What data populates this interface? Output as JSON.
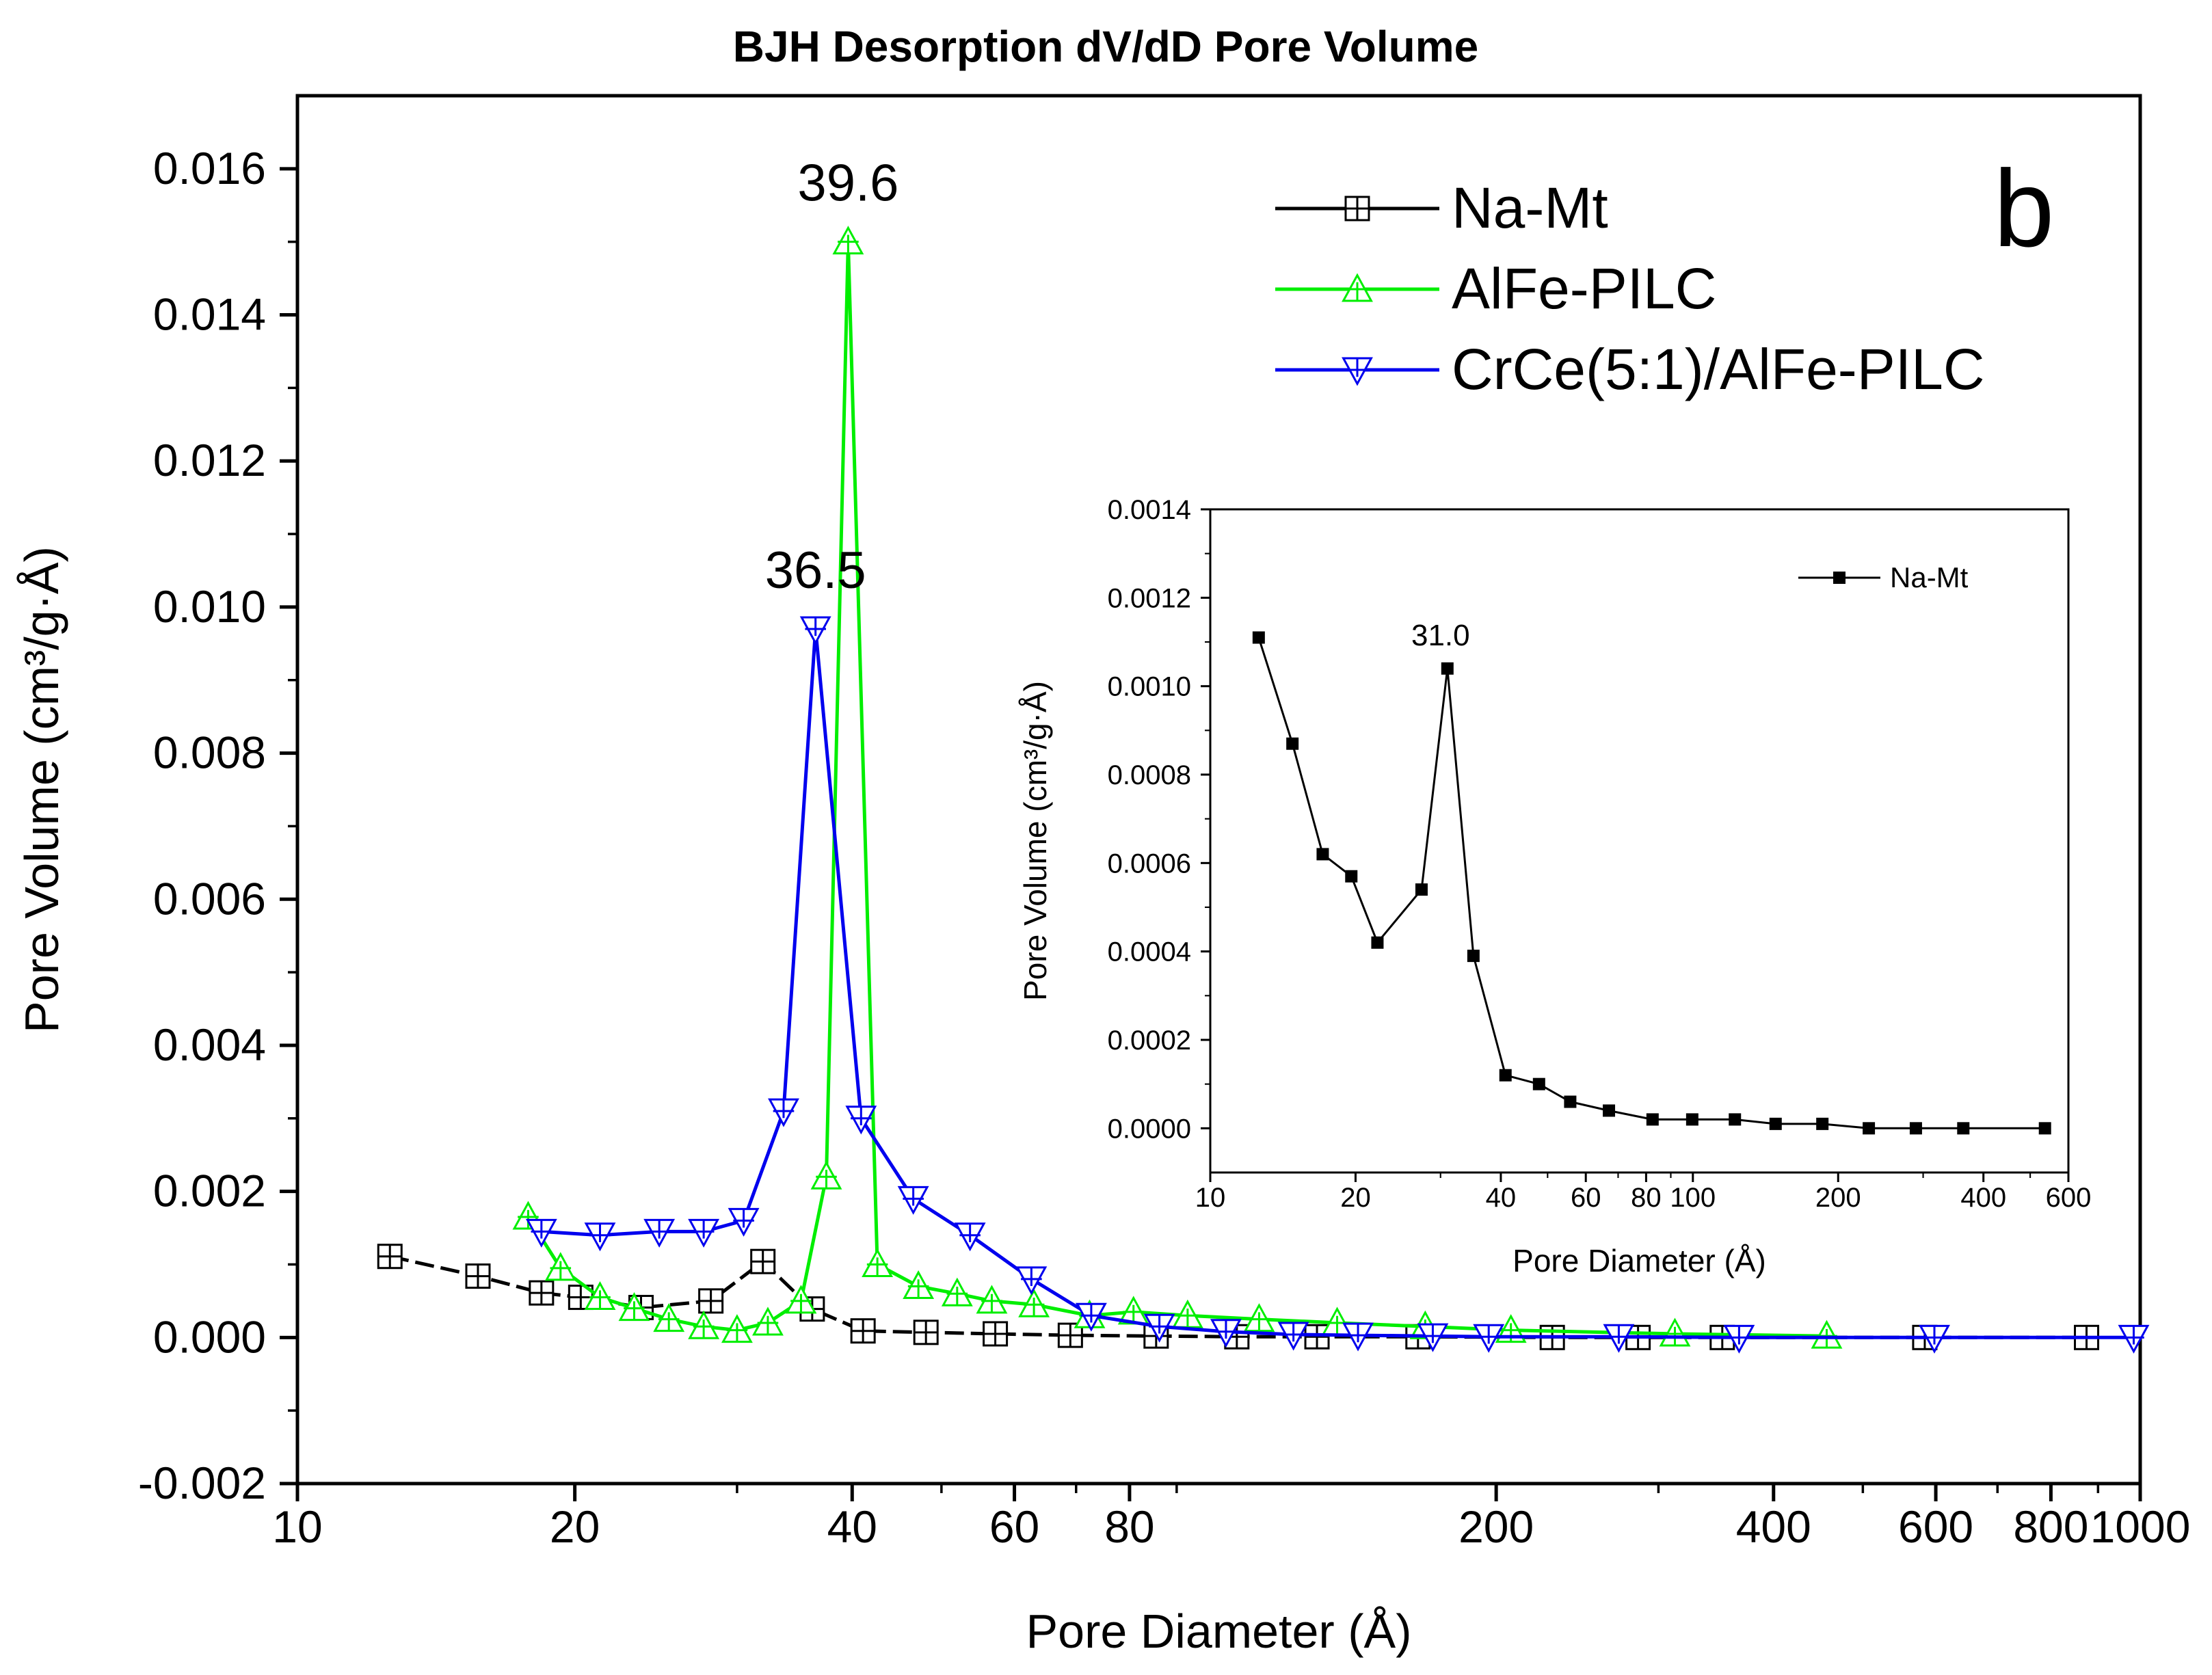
{
  "chart_data": [
    {
      "type": "line",
      "title": "BJH Desorption dV/dD Pore Volume",
      "panel_letter": "b",
      "xlabel": "Pore Diameter (Å)",
      "ylabel": "Pore Volume (cm³/g·Å)",
      "xscale": "log",
      "xlim": [
        10,
        1000
      ],
      "ylim": [
        -0.002,
        0.017
      ],
      "grid": false,
      "legend_position": "top-right",
      "x_ticks": [
        10,
        20,
        40,
        60,
        80,
        200,
        400,
        600,
        800,
        1000
      ],
      "x_tick_labels": [
        "10",
        "20",
        "40",
        "60",
        "80",
        "200",
        "400",
        "600",
        "800",
        "1000"
      ],
      "y_ticks": [
        -0.002,
        0,
        0.002,
        0.004,
        0.006,
        0.008,
        0.01,
        0.012,
        0.014,
        0.016
      ],
      "y_tick_labels": [
        "-0.002",
        "0.000",
        "0.002",
        "0.004",
        "0.006",
        "0.008",
        "0.010",
        "0.012",
        "0.014",
        "0.016"
      ],
      "series": [
        {
          "name": "Na-Mt",
          "color": "#000000",
          "marker": "square-plus",
          "x": [
            12.6,
            15.7,
            18.4,
            20.3,
            23.6,
            28.1,
            32.0,
            36.2,
            41.1,
            48.1,
            57.2,
            69.0,
            85.5,
            104.6,
            127.8,
            164.5,
            230.1,
            285.1,
            351.9,
            583.7,
            874.5
          ],
          "y": [
            0.00111,
            0.00084,
            0.00061,
            0.00055,
            0.00041,
            0.0005,
            0.00104,
            0.00039,
            9e-05,
            7e-05,
            5e-05,
            3e-05,
            2e-05,
            1e-05,
            1e-05,
            1e-05,
            0.0,
            0.0,
            0.0,
            0.0,
            0.0
          ]
        },
        {
          "name": "AlFe-PILC",
          "color": "#00ee00",
          "marker": "triangle-up",
          "x": [
            17.8,
            19.3,
            21.3,
            23.2,
            25.3,
            27.6,
            30.0,
            32.4,
            35.2,
            37.5,
            39.6,
            42.6,
            47.2,
            52.0,
            56.7,
            63.0,
            72.4,
            80.8,
            92.5,
            110.6,
            134.4,
            167.5,
            207.5,
            312.6,
            456.8
          ],
          "y": [
            0.00165,
            0.00095,
            0.00055,
            0.0004,
            0.00025,
            0.00015,
            0.0001,
            0.0002,
            0.0005,
            0.0022,
            0.015,
            0.001,
            0.0007,
            0.0006,
            0.0005,
            0.00045,
            0.0003,
            0.00035,
            0.0003,
            0.00025,
            0.0002,
            0.00015,
            0.0001,
            5e-05,
            2e-05
          ]
        },
        {
          "name": "CrCe(5:1)/AlFe-PILC",
          "color": "#0000ee",
          "marker": "triangle-down",
          "x": [
            18.4,
            21.3,
            24.7,
            27.6,
            30.5,
            33.7,
            36.5,
            40.9,
            46.6,
            53.7,
            62.6,
            72.7,
            86.2,
            101.8,
            120.5,
            141.6,
            170.7,
            196.3,
            271.7,
            367.0,
            597.9,
            983.9
          ],
          "y": [
            0.00145,
            0.0014,
            0.00145,
            0.00145,
            0.0016,
            0.0031,
            0.0097,
            0.003,
            0.0019,
            0.0014,
            0.0008,
            0.0003,
            0.00015,
            8e-05,
            4e-05,
            3e-05,
            2e-05,
            1e-05,
            1e-05,
            0.0,
            0.0,
            0.0
          ]
        }
      ],
      "annotations": [
        {
          "text": "39.6",
          "x": 39.6,
          "y": 0.015
        },
        {
          "text": "36.5",
          "x": 36.5,
          "y": 0.0097
        }
      ]
    },
    {
      "type": "line",
      "title": "",
      "xlabel": "Pore Diameter (Å)",
      "ylabel": "Pore Volume (cm³/g·Å)",
      "xscale": "log",
      "xlim": [
        10,
        600
      ],
      "ylim": [
        -0.0001,
        0.0014
      ],
      "grid": false,
      "legend_position": "top-right",
      "x_ticks": [
        10,
        20,
        40,
        60,
        80,
        100,
        200,
        400,
        600
      ],
      "x_tick_labels": [
        "10",
        "20",
        "40",
        "60",
        "80",
        "100",
        "200",
        "400",
        "600"
      ],
      "y_ticks": [
        0,
        0.0002,
        0.0004,
        0.0006,
        0.0008,
        0.001,
        0.0012,
        0.0014
      ],
      "y_tick_labels": [
        "0.0000",
        "0.0002",
        "0.0004",
        "0.0006",
        "0.0008",
        "0.0010",
        "0.0012",
        "0.0014"
      ],
      "series": [
        {
          "name": "Na-Mt",
          "color": "#000000",
          "marker": "filled-square",
          "x": [
            12.6,
            14.8,
            17.1,
            19.6,
            22.2,
            27.4,
            31.0,
            35.1,
            40.9,
            48.0,
            55.7,
            67.0,
            82.5,
            99.7,
            122.2,
            148.4,
            185.5,
            231.5,
            289.8,
            363.4,
            536.5
          ],
          "y": [
            0.00111,
            0.00087,
            0.00062,
            0.00057,
            0.00042,
            0.00054,
            0.00104,
            0.00039,
            0.00012,
            0.0001,
            6e-05,
            4e-05,
            2e-05,
            2e-05,
            2e-05,
            1e-05,
            1e-05,
            0.0,
            0.0,
            0.0,
            0.0
          ]
        }
      ],
      "annotations": [
        {
          "text": "31.0",
          "x": 31.0,
          "y": 0.00104
        }
      ]
    }
  ]
}
